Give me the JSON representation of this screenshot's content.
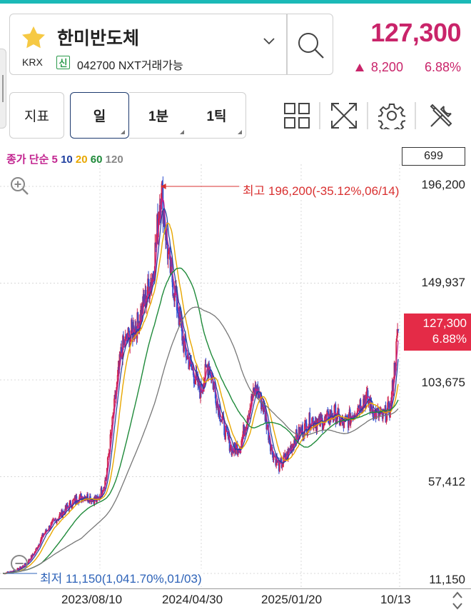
{
  "header": {
    "stock_name": "한미반도체",
    "market": "KRX",
    "credit_badge": "신",
    "code_text": "042700 NXT거래가능",
    "price": "127,300",
    "change": "8,200",
    "change_pct": "6.88%"
  },
  "toolbar": {
    "indicator_label": "지표",
    "periods": [
      "일",
      "1분",
      "1틱"
    ],
    "selected_period": "일",
    "icons": [
      "layout-grid-icon",
      "fullscreen-icon",
      "settings-gear-icon",
      "tools-icon"
    ]
  },
  "chart_legend": {
    "prefix": "종가 단순",
    "ma": [
      {
        "label": "5",
        "color": "#c2238f"
      },
      {
        "label": "10",
        "color": "#1f3fa0"
      },
      {
        "label": "20",
        "color": "#e8a700"
      },
      {
        "label": "60",
        "color": "#1f8a3a"
      },
      {
        "label": "120",
        "color": "#888888"
      }
    ]
  },
  "chart_data": {
    "type": "line",
    "volume_label": "699",
    "y_ticks": [
      "196,200",
      "149,937",
      "103,675",
      "57,412",
      "11,150"
    ],
    "current_price_label": "127,300",
    "current_pct_label": "6.88%",
    "high_label": "최고 196,200(-35.12%,06/14)",
    "low_label": "최저 11,150(1,041.70%,01/03)",
    "x_ticks": [
      "2023/08/10",
      "2024/04/30",
      "2025/01/20",
      "10/13"
    ],
    "ylim": [
      11150,
      196200
    ],
    "close_series": [
      11150,
      12000,
      13200,
      16000,
      21000,
      29000,
      34000,
      38000,
      42000,
      46000,
      48000,
      47500,
      46000,
      56000,
      88000,
      118000,
      125000,
      130000,
      142000,
      155000,
      196200,
      160000,
      140000,
      118000,
      108000,
      98000,
      112000,
      95000,
      80000,
      70000,
      72000,
      88000,
      100000,
      90000,
      70000,
      62000,
      68000,
      76000,
      80000,
      85000,
      83000,
      85000,
      88000,
      82000,
      86000,
      92000,
      95000,
      88000,
      86000,
      90000,
      127300
    ],
    "up_color": "#d0234c",
    "down_color": "#2e4ed0"
  }
}
